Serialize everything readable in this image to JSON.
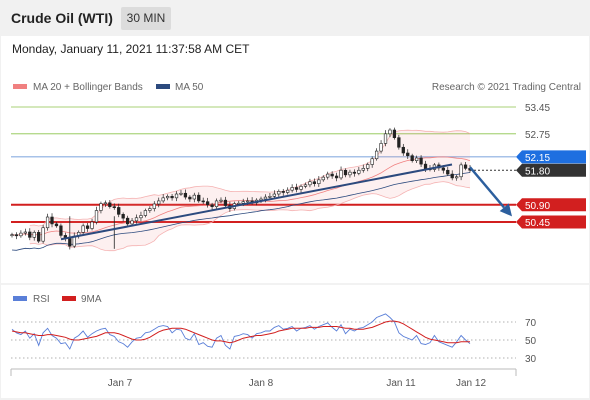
{
  "header": {
    "title": "Crude Oil (WTI)",
    "timeframe": "30 MIN"
  },
  "datetime": "Monday, January 11, 2021 11:37:58 AM CET",
  "credit": "Research © 2021 Trading Central",
  "colors": {
    "bb": "#f08080",
    "ma50": "#2c4a7e",
    "green": "#8bc34a",
    "red": "#d21f1f",
    "blue": "#1e6fe0",
    "dark": "#333333",
    "rsi": "#5a7fd8",
    "ma9": "#d21f1f"
  },
  "chart_data": [
    {
      "type": "candlestick",
      "legend": [
        {
          "label": "MA 20 + Bollinger Bands",
          "color": "#f08080"
        },
        {
          "label": "MA 50",
          "color": "#2c4a7e"
        }
      ],
      "ylim": [
        49.1,
        53.75
      ],
      "levels": [
        {
          "value": 53.45,
          "label": "53.45",
          "style": "green"
        },
        {
          "value": 52.75,
          "label": "52.75",
          "style": "green"
        },
        {
          "value": 52.15,
          "label": "52.15",
          "style": "blue-tag"
        },
        {
          "value": 51.8,
          "label": "51.80",
          "style": "dark-tag"
        },
        {
          "value": 50.9,
          "label": "50.90",
          "style": "red-tag"
        },
        {
          "value": 50.45,
          "label": "50.45",
          "style": "red-tag"
        }
      ],
      "x_ticks": [
        "Jan 7",
        "Jan 8",
        "Jan 11",
        "Jan 12"
      ],
      "closes": [
        50.12,
        50.09,
        50.16,
        50.19,
        50.05,
        50.18,
        49.95,
        50.3,
        50.58,
        50.4,
        50.35,
        50.1,
        50.02,
        49.82,
        50.08,
        50.18,
        50.35,
        50.28,
        50.45,
        50.75,
        50.93,
        50.95,
        50.85,
        50.83,
        50.65,
        50.55,
        50.4,
        50.48,
        50.56,
        50.62,
        50.75,
        50.8,
        50.92,
        51.0,
        51.08,
        51.12,
        51.08,
        51.18,
        51.2,
        51.1,
        51.05,
        51.15,
        51.0,
        50.98,
        50.9,
        50.85,
        51.0,
        51.02,
        50.88,
        50.8,
        50.93,
        50.94,
        50.98,
        51.0,
        50.95,
        51.02,
        51.05,
        51.1,
        51.12,
        51.18,
        51.25,
        51.22,
        51.28,
        51.35,
        51.3,
        51.38,
        51.42,
        51.5,
        51.45,
        51.55,
        51.62,
        51.7,
        51.65,
        51.6,
        51.8,
        51.68,
        51.75,
        51.72,
        51.8,
        51.85,
        51.95,
        52.1,
        52.3,
        52.5,
        52.75,
        52.85,
        52.65,
        52.4,
        52.25,
        52.18,
        52.05,
        52.12,
        51.96,
        51.84,
        51.82,
        51.94,
        51.86,
        51.8,
        51.7,
        51.6,
        51.63,
        51.94,
        51.85,
        51.8
      ],
      "line": {
        "from": [
          50.0
        ],
        "to": [
          51.95
        ]
      },
      "arrow": {
        "from": 51.88,
        "to": 50.7
      }
    },
    {
      "type": "line",
      "legend": [
        {
          "label": "RSI",
          "color": "#5a7fd8"
        },
        {
          "label": "9MA",
          "color": "#d21f1f"
        }
      ],
      "ylim": [
        20,
        80
      ],
      "y_ticks": [
        {
          "value": 70,
          "label": "70"
        },
        {
          "value": 50,
          "label": "50"
        },
        {
          "value": 30,
          "label": "30"
        }
      ],
      "rsi": [
        62,
        58,
        56,
        60,
        52,
        57,
        44,
        58,
        63,
        55,
        52,
        46,
        47,
        40,
        52,
        55,
        60,
        53,
        57,
        60,
        62,
        63,
        56,
        54,
        48,
        46,
        42,
        48,
        52,
        53,
        58,
        59,
        62,
        65,
        66,
        65,
        58,
        62,
        61,
        52,
        50,
        57,
        45,
        47,
        43,
        42,
        52,
        55,
        44,
        40,
        54,
        55,
        57,
        56,
        52,
        57,
        58,
        60,
        60,
        64,
        66,
        62,
        63,
        65,
        60,
        63,
        64,
        66,
        62,
        65,
        67,
        69,
        64,
        60,
        67,
        57,
        62,
        60,
        63,
        64,
        67,
        70,
        75,
        77,
        79,
        75,
        70,
        58,
        54,
        52,
        50,
        55,
        46,
        45,
        47,
        55,
        48,
        46,
        44,
        42,
        48,
        55,
        50,
        46
      ],
      "ma9": [
        60,
        59,
        58,
        58,
        57,
        56,
        55,
        55,
        56,
        56,
        55,
        54,
        53,
        51,
        50,
        50,
        51,
        52,
        53,
        54,
        56,
        58,
        58,
        58,
        57,
        55,
        53,
        51,
        50,
        50,
        51,
        53,
        56,
        59,
        61,
        62,
        63,
        63,
        63,
        62,
        60,
        58,
        56,
        54,
        52,
        50,
        49,
        49,
        48,
        47,
        48,
        50,
        52,
        53,
        54,
        55,
        55,
        56,
        57,
        58,
        60,
        61,
        62,
        63,
        63,
        63,
        63,
        64,
        64,
        64,
        65,
        65,
        65,
        65,
        64,
        63,
        63,
        62,
        62,
        62,
        63,
        64,
        66,
        68,
        70,
        71,
        71,
        70,
        68,
        65,
        62,
        59,
        56,
        53,
        51,
        50,
        49,
        48,
        47,
        47,
        47,
        48,
        48,
        48
      ]
    }
  ]
}
